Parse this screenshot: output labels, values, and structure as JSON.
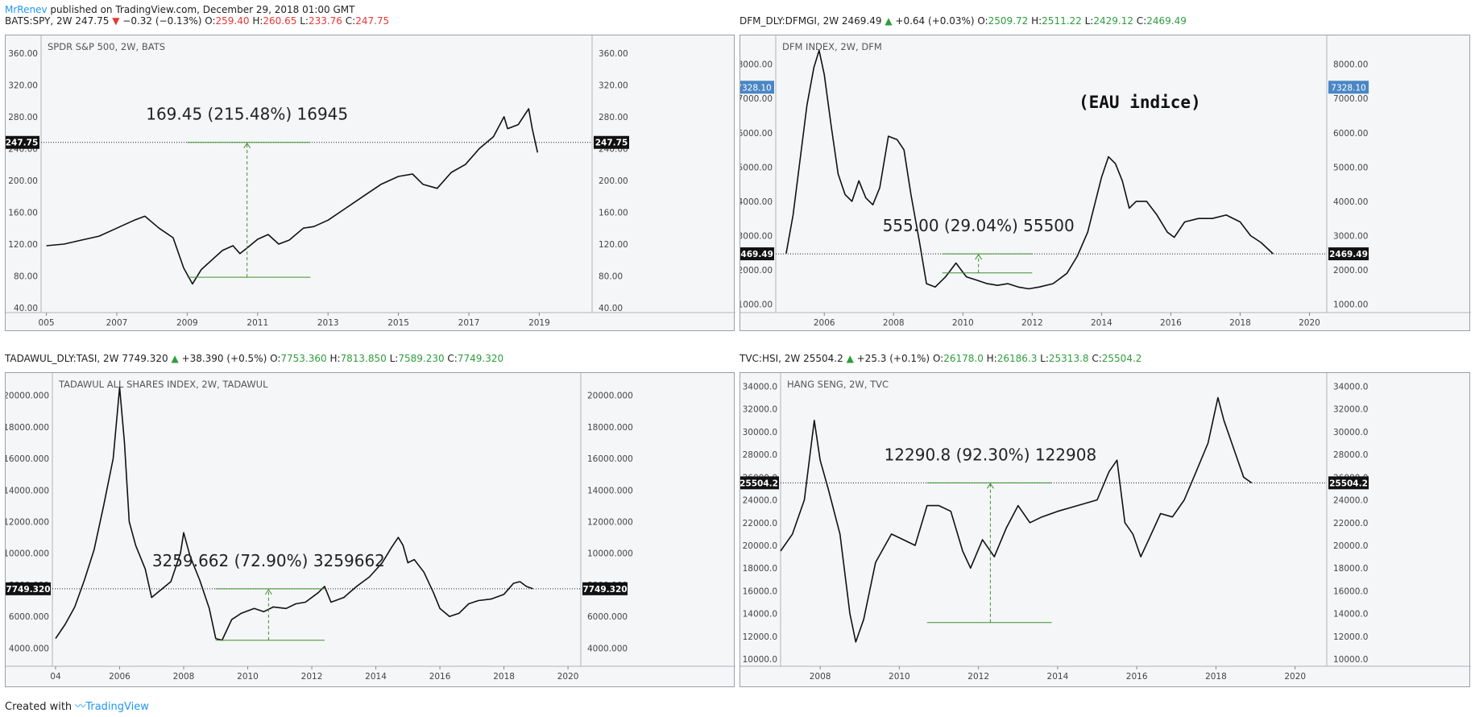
{
  "header": {
    "author": "MrRenev",
    "published": "published on TradingView.com, December 29, 2018 01:00 GMT"
  },
  "footer": {
    "created_with": "Created with",
    "brand": "TradingView"
  },
  "chart_data": [
    {
      "type": "line",
      "symbol_line": {
        "symbol": "BATS:SPY, 2W",
        "last": "247.75",
        "direction": "down",
        "change": "−0.32 (−0.13%)",
        "o": "259.40",
        "h": "260.65",
        "l": "233.76",
        "c": "247.75",
        "value_color": "#c62828"
      },
      "title": "SPDR S&P 500, 2W, BATS",
      "xlim": [
        2004.85,
        2020.5
      ],
      "ylim": [
        38,
        374
      ],
      "x_ticks": [
        "005",
        "2007",
        "2009",
        "2011",
        "2013",
        "2015",
        "2017",
        "2019"
      ],
      "x_tick_values": [
        2005,
        2007,
        2009,
        2011,
        2013,
        2015,
        2017,
        2019
      ],
      "y_ticks": [
        "40.00",
        "80.00",
        "120.00",
        "160.00",
        "200.00",
        "240.00",
        "280.00",
        "320.00",
        "360.00"
      ],
      "y_tick_values": [
        40,
        80,
        120,
        160,
        200,
        240,
        280,
        320,
        360
      ],
      "price_line": {
        "value": 247.75,
        "label": "247.75"
      },
      "measure": {
        "label": "169.45 (215.48%) 16945",
        "x_from": 2009.0,
        "x_to": 2012.5,
        "x_arrow": 2010.7,
        "y_low": 78.3,
        "y_high": 247.75
      },
      "series": [
        {
          "x": [
            2005.0,
            2005.5,
            2006.0,
            2006.5,
            2007.0,
            2007.5,
            2007.8,
            2008.2,
            2008.6,
            2008.9,
            2009.15,
            2009.4,
            2009.7,
            2010.0,
            2010.3,
            2010.5,
            2010.7,
            2011.0,
            2011.3,
            2011.6,
            2011.9,
            2012.3,
            2012.6,
            2013.0,
            2013.5,
            2014.0,
            2014.5,
            2015.0,
            2015.4,
            2015.7,
            2016.1,
            2016.5,
            2016.9,
            2017.3,
            2017.7,
            2018.0,
            2018.1,
            2018.4,
            2018.7,
            2018.8,
            2018.95
          ],
          "values": [
            118,
            120,
            125,
            130,
            140,
            150,
            155,
            140,
            128,
            90,
            70,
            88,
            100,
            112,
            118,
            108,
            115,
            126,
            132,
            120,
            125,
            140,
            142,
            150,
            165,
            180,
            195,
            205,
            208,
            195,
            190,
            210,
            220,
            240,
            255,
            280,
            265,
            270,
            290,
            265,
            235
          ]
        }
      ]
    },
    {
      "type": "line",
      "symbol_line": {
        "symbol": "DFM_DLY:DFMGI, 2W",
        "last": "2469.49",
        "direction": "up",
        "change": "+0.64 (+0.03%)",
        "o": "2509.72",
        "h": "2511.22",
        "l": "2429.12",
        "c": "2469.49",
        "value_color": "#2e9d3e"
      },
      "title": "DFM INDEX, 2W, DFM",
      "note": "(EAU indice)",
      "xlim": [
        2004.6,
        2020.5
      ],
      "ylim": [
        850,
        8650
      ],
      "x_ticks": [
        "2006",
        "2008",
        "2010",
        "2012",
        "2014",
        "2016",
        "2018",
        "2020"
      ],
      "x_tick_values": [
        2006,
        2008,
        2010,
        2012,
        2014,
        2016,
        2018,
        2020
      ],
      "y_ticks": [
        "1000.00",
        "2000.00",
        "3000.00",
        "4000.00",
        "5000.00",
        "6000.00",
        "7000.00",
        "8000.00"
      ],
      "y_tick_values": [
        1000,
        2000,
        3000,
        4000,
        5000,
        6000,
        7000,
        8000
      ],
      "price_line": {
        "value": 2469.49,
        "label": "2469.49"
      },
      "marker_line": {
        "value": 7328.1,
        "label": "7328.10"
      },
      "measure": {
        "label": "555.00 (29.04%) 55500",
        "x_from": 2009.4,
        "x_to": 2012.0,
        "x_arrow": 2010.45,
        "y_low": 1914,
        "y_high": 2469.49
      },
      "series": [
        {
          "x": [
            2004.9,
            2005.1,
            2005.3,
            2005.5,
            2005.7,
            2005.85,
            2006.0,
            2006.2,
            2006.4,
            2006.6,
            2006.8,
            2007.0,
            2007.2,
            2007.4,
            2007.6,
            2007.85,
            2008.1,
            2008.3,
            2008.5,
            2008.75,
            2008.95,
            2009.2,
            2009.5,
            2009.8,
            2010.1,
            2010.4,
            2010.7,
            2011.0,
            2011.3,
            2011.6,
            2011.9,
            2012.2,
            2012.6,
            2013.0,
            2013.3,
            2013.6,
            2014.0,
            2014.2,
            2014.4,
            2014.6,
            2014.8,
            2015.0,
            2015.3,
            2015.6,
            2015.9,
            2016.1,
            2016.4,
            2016.8,
            2017.2,
            2017.6,
            2018.0,
            2018.3,
            2018.6,
            2018.95
          ],
          "values": [
            2480,
            3600,
            5200,
            6800,
            7900,
            8400,
            7700,
            6200,
            4800,
            4200,
            4000,
            4600,
            4100,
            3900,
            4400,
            5900,
            5800,
            5500,
            4200,
            2800,
            1600,
            1500,
            1800,
            2200,
            1800,
            1700,
            1600,
            1550,
            1600,
            1500,
            1450,
            1500,
            1600,
            1900,
            2400,
            3100,
            4700,
            5300,
            5100,
            4600,
            3800,
            4000,
            4000,
            3600,
            3100,
            2950,
            3400,
            3500,
            3500,
            3600,
            3400,
            3000,
            2800,
            2470
          ]
        }
      ]
    },
    {
      "type": "line",
      "symbol_line": {
        "symbol": "TADAWUL_DLY:TASI, 2W",
        "last": "7749.320",
        "direction": "up",
        "change": "+38.390 (+0.5%)",
        "o": "7753.360",
        "h": "7813.850",
        "l": "7589.230",
        "c": "7749.320",
        "value_color": "#2e9d3e"
      },
      "title": "TADAWUL ALL SHARES INDEX, 2W, TADAWUL",
      "xlim": [
        2003.9,
        2020.4
      ],
      "ylim": [
        3050,
        21000
      ],
      "x_ticks": [
        "04",
        "2006",
        "2008",
        "2010",
        "2012",
        "2014",
        "2016",
        "2018",
        "2020"
      ],
      "x_tick_values": [
        2004,
        2006,
        2008,
        2010,
        2012,
        2014,
        2016,
        2018,
        2020
      ],
      "y_ticks": [
        "4000.000",
        "6000.000",
        "8000.000",
        "10000.000",
        "12000.000",
        "14000.000",
        "16000.000",
        "18000.000",
        "20000.000"
      ],
      "y_tick_values": [
        4000,
        6000,
        8000,
        10000,
        12000,
        14000,
        16000,
        18000,
        20000
      ],
      "price_line": {
        "value": 7749.32,
        "label": "7749.320"
      },
      "measure": {
        "label": "3259.662 (72.90%) 3259662",
        "x_from": 2009.0,
        "x_to": 2012.4,
        "x_arrow": 2010.65,
        "y_low": 4489,
        "y_high": 7749.32
      },
      "series": [
        {
          "x": [
            2004.0,
            2004.3,
            2004.6,
            2004.9,
            2005.2,
            2005.5,
            2005.8,
            2006.0,
            2006.15,
            2006.3,
            2006.5,
            2006.8,
            2007.0,
            2007.3,
            2007.6,
            2007.9,
            2008.0,
            2008.2,
            2008.5,
            2008.8,
            2009.0,
            2009.2,
            2009.5,
            2009.8,
            2010.2,
            2010.5,
            2010.8,
            2011.2,
            2011.5,
            2011.8,
            2012.2,
            2012.4,
            2012.6,
            2013.0,
            2013.4,
            2013.8,
            2014.2,
            2014.5,
            2014.7,
            2014.85,
            2015.0,
            2015.2,
            2015.5,
            2015.8,
            2016.0,
            2016.3,
            2016.6,
            2016.9,
            2017.2,
            2017.6,
            2018.0,
            2018.3,
            2018.5,
            2018.7,
            2018.9
          ],
          "values": [
            4600,
            5500,
            6600,
            8300,
            10200,
            13000,
            16000,
            20500,
            17000,
            12000,
            10500,
            9000,
            7200,
            7700,
            8200,
            10000,
            11300,
            9800,
            8300,
            6500,
            4600,
            4500,
            5800,
            6200,
            6500,
            6300,
            6600,
            6500,
            6800,
            6900,
            7500,
            7900,
            6900,
            7200,
            7900,
            8500,
            9400,
            10400,
            11000,
            10500,
            9400,
            9600,
            8800,
            7500,
            6500,
            6000,
            6200,
            6800,
            7000,
            7100,
            7400,
            8100,
            8200,
            7900,
            7750
          ]
        }
      ]
    },
    {
      "type": "line",
      "symbol_line": {
        "symbol": "TVC:HSI, 2W",
        "last": "25504.2",
        "direction": "up",
        "change": "+25.3 (+0.1%)",
        "o": "26178.0",
        "h": "26186.3",
        "l": "25313.8",
        "c": "25504.2",
        "value_color": "#2e9d3e"
      },
      "title": "HANG SENG, 2W, TVC",
      "xlim": [
        2007.0,
        2020.8
      ],
      "ylim": [
        9650,
        34600
      ],
      "x_ticks": [
        "2008",
        "2010",
        "2012",
        "2014",
        "2016",
        "2018",
        "2020"
      ],
      "x_tick_values": [
        2008,
        2010,
        2012,
        2014,
        2016,
        2018,
        2020
      ],
      "y_ticks": [
        "10000.0",
        "12000.0",
        "14000.0",
        "16000.0",
        "18000.0",
        "20000.0",
        "22000.0",
        "24000.0",
        "26000.0",
        "28000.0",
        "30000.0",
        "32000.0",
        "34000.0"
      ],
      "y_tick_values": [
        10000,
        12000,
        14000,
        16000,
        18000,
        20000,
        22000,
        24000,
        26000,
        28000,
        30000,
        32000,
        34000
      ],
      "price_line": {
        "value": 25504.2,
        "label": "25504.2"
      },
      "measure": {
        "label": "12290.8 (92.30%) 122908",
        "x_from": 2010.7,
        "x_to": 2013.85,
        "x_arrow": 2012.3,
        "y_low": 13213,
        "y_high": 25504.2
      },
      "series": [
        {
          "x": [
            2007.0,
            2007.3,
            2007.6,
            2007.85,
            2008.0,
            2008.2,
            2008.5,
            2008.75,
            2008.9,
            2009.1,
            2009.4,
            2009.8,
            2010.1,
            2010.4,
            2010.7,
            2011.0,
            2011.3,
            2011.6,
            2011.8,
            2012.1,
            2012.4,
            2012.7,
            2013.0,
            2013.3,
            2013.6,
            2014.0,
            2014.5,
            2015.0,
            2015.3,
            2015.5,
            2015.7,
            2015.9,
            2016.1,
            2016.3,
            2016.6,
            2016.9,
            2017.2,
            2017.5,
            2017.8,
            2018.05,
            2018.2,
            2018.5,
            2018.7,
            2018.9
          ],
          "values": [
            19500,
            21000,
            24000,
            31000,
            27500,
            25000,
            21000,
            14000,
            11500,
            13500,
            18500,
            21000,
            20500,
            20000,
            23500,
            23500,
            23000,
            19500,
            18000,
            20500,
            19000,
            21500,
            23500,
            22000,
            22500,
            23000,
            23500,
            24000,
            26500,
            27500,
            22000,
            21000,
            19000,
            20500,
            22800,
            22500,
            24000,
            26500,
            29000,
            33000,
            31000,
            28000,
            26000,
            25500
          ]
        }
      ]
    }
  ]
}
